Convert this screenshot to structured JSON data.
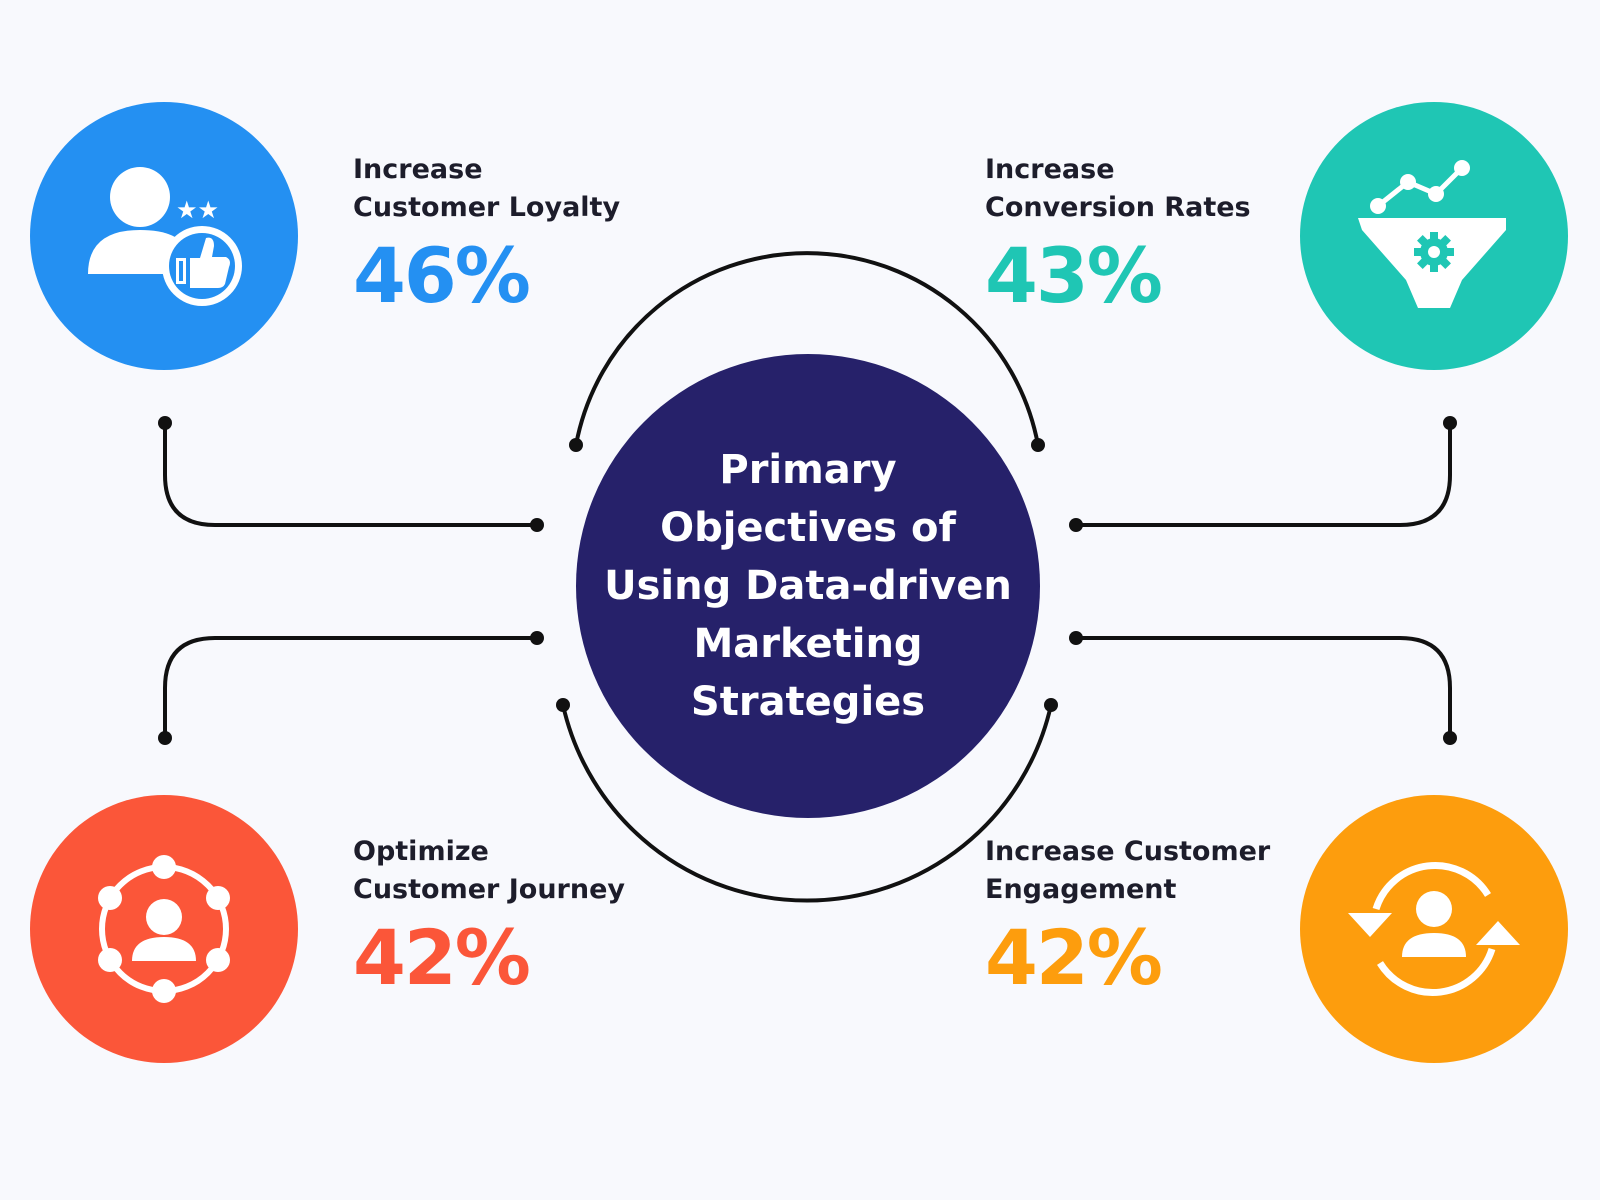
{
  "center": {
    "title": "Primary\nObjectives of\nUsing Data-driven\nMarketing\nStrategies",
    "color": "#26216a"
  },
  "objectives": [
    {
      "label_line1": "Increase",
      "label_line2": "Customer Loyalty",
      "value": "46%",
      "color": "#2490f2",
      "icon": "user-star-thumbs-up-icon"
    },
    {
      "label_line1": "Increase",
      "label_line2": "Conversion Rates",
      "value": "43%",
      "color": "#1fc6b4",
      "icon": "funnel-gear-chart-icon"
    },
    {
      "label_line1": "Optimize",
      "label_line2": "Customer Journey",
      "value": "42%",
      "color": "#fb5639",
      "icon": "user-network-icon"
    },
    {
      "label_line1": "Increase Customer",
      "label_line2": "Engagement",
      "value": "42%",
      "color": "#fd9d0d",
      "icon": "user-cycle-arrows-icon"
    }
  ]
}
